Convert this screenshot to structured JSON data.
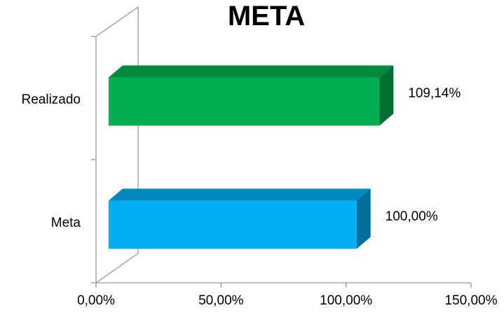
{
  "chart_data": {
    "type": "bar",
    "orientation": "horizontal",
    "three_d": true,
    "title": "META",
    "categories": [
      "Meta",
      "Realizado"
    ],
    "values": [
      100.0,
      109.14
    ],
    "value_labels": [
      "100,00%",
      "109,14%"
    ],
    "colors": {
      "Meta": {
        "front": "#00b0f0",
        "top": "#0089c0",
        "side": "#006f9c"
      },
      "Realizado": {
        "front": "#00b050",
        "top": "#008a3e",
        "side": "#006e31"
      }
    },
    "x_ticks": [
      0,
      50,
      100,
      150
    ],
    "x_tick_labels": [
      "0,00%",
      "50,00%",
      "100,00%",
      "150,00%"
    ],
    "xlim": [
      0,
      150
    ],
    "grid": false,
    "legend": "none"
  }
}
